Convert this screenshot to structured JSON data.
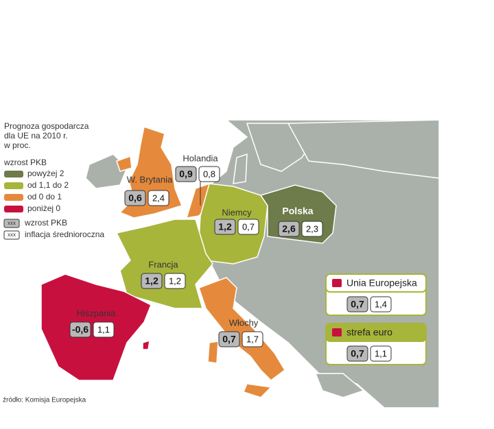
{
  "title_lines": [
    "Prognoza gospodarcza",
    "dla UE na 2010 r.",
    "w proc."
  ],
  "legend": {
    "heading": "wzrost PKB",
    "items": [
      {
        "label": "powyżej 2",
        "color": "#6e7b4a"
      },
      {
        "label": "od 1,1 do 2",
        "color": "#a7b53b"
      },
      {
        "label": "od 0 do 1",
        "color": "#e58a3c"
      },
      {
        "label": "poniżej 0",
        "color": "#c8103f"
      }
    ],
    "box_items": [
      {
        "sample": "xxx",
        "label": "wzrost PKB"
      },
      {
        "sample": "xxx",
        "label": "inflacja średnioroczna"
      }
    ]
  },
  "countries": [
    {
      "name": "W. Brytania",
      "gdp": "0,6",
      "inflation": "2,4"
    },
    {
      "name": "Holandia",
      "gdp": "0,9",
      "inflation": "0,8"
    },
    {
      "name": "Niemcy",
      "gdp": "1,2",
      "inflation": "0,7"
    },
    {
      "name": "Polska",
      "gdp": "2,6",
      "inflation": "2,3"
    },
    {
      "name": "Francja",
      "gdp": "1,2",
      "inflation": "1,2"
    },
    {
      "name": "Hiszpania",
      "gdp": "-0,6",
      "inflation": "1,1"
    },
    {
      "name": "Włochy",
      "gdp": "0,7",
      "inflation": "1,7"
    }
  ],
  "summary": [
    {
      "name": "Unia Europejska",
      "gdp": "0,7",
      "inflation": "1,4"
    },
    {
      "name": "strefa euro",
      "gdp": "0,7",
      "inflation": "1,1"
    }
  ],
  "source": "źródło: Komisja Europejska"
}
